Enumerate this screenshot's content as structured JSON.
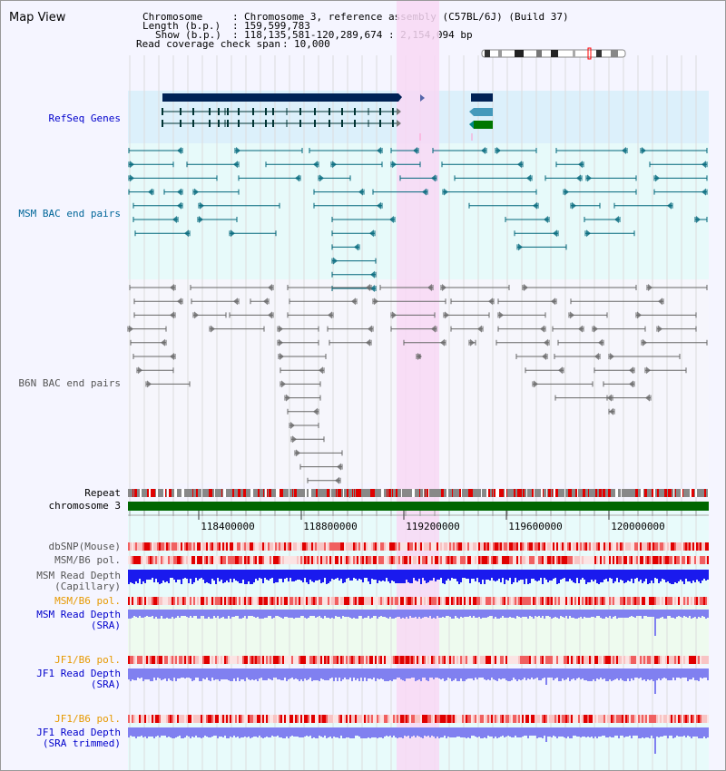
{
  "title": "Map View",
  "info": {
    "chromosome_key": "Chromosome",
    "chromosome_val": "Chromosome 3, reference assembly (C57BL/6J) (Build 37)",
    "length_key": "Length (b.p.)",
    "length_val": "159,599,783",
    "show_key": "Show (b.p.)",
    "show_val": "118,135,581-120,289,674 : 2,154,094 bp",
    "span_key": "Read coverage check span",
    "span_val": "10,000"
  },
  "tracks": {
    "refseq": "RefSeq Genes",
    "msm_bac": "MSM BAC end pairs",
    "b6n_bac": "B6N BAC end pairs",
    "repeat": "Repeat",
    "chromosome": "chromosome 3",
    "dbsnp": "dbSNP(Mouse)",
    "msm_b6_pol_1": "MSM/B6 pol.",
    "msm_depth_cap_1": "MSM Read Depth",
    "msm_depth_cap_2": "(Capillary)",
    "msm_b6_pol_2": "MSM/B6 pol.",
    "msm_depth_sra_1": "MSM Read Depth",
    "msm_depth_sra_2": "(SRA)",
    "jf1_b6_pol_1": "JF1/B6 pol.",
    "jf1_depth_sra_1": "JF1 Read Depth",
    "jf1_depth_sra_2": "(SRA)",
    "jf1_b6_pol_2": "JF1/B6 pol.",
    "jf1_depth_trim_1": "JF1 Read Depth",
    "jf1_depth_trim_2": "(SRA trimmed)"
  },
  "axis": {
    "ticks": [
      "118400000",
      "118800000",
      "119200000",
      "119600000",
      "120000000"
    ]
  },
  "colors": {
    "refseq_label": "#0000cc",
    "msm_label": "#006699",
    "b6n_label": "#555555",
    "orange_label": "#e69900",
    "blue_label": "#0000cc",
    "highlight": "#f8d8f4",
    "chromosome_bar": "#006600",
    "depth_cap": "#1a1aee",
    "depth_sra": "#8080f0"
  }
}
